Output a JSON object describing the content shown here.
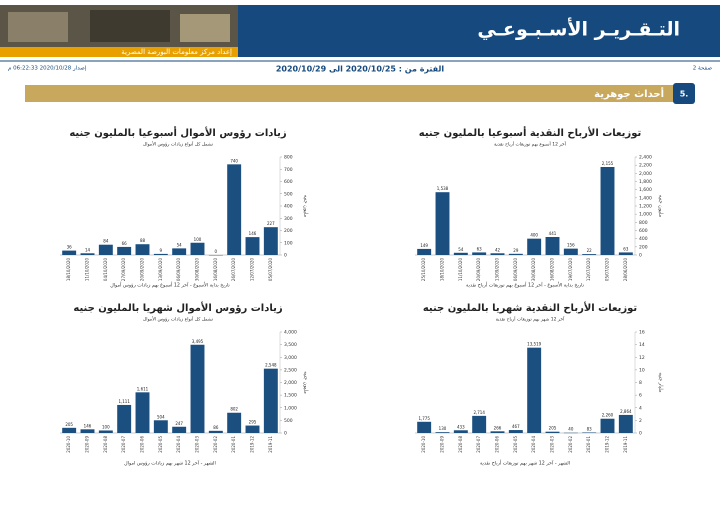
{
  "header": {
    "title": "التـقـريـر الأسـبـوعـي",
    "prepared_by": "إعداد مركز معلومات البورصة المصرية",
    "page": "صفحة 2",
    "period": "الفترة من : 2020/10/25 الى 2020/10/29",
    "issued": "إصدار 2020/10/28 06:22:33 م"
  },
  "section": {
    "number": "5.",
    "title": "أحداث جوهرية"
  },
  "chart_data": [
    {
      "type": "bar",
      "title": "توزيعات الأرباح النقدية أسبوعيا بالمليون جنيه",
      "subtitle": "آخر 12 أسبوع بهم توزيعات أرباح نقدية",
      "x_label": "تاريخ بداية الأسبوع - آخر 12 أسبوع بهم توزيعات أرباح نقدية",
      "y_label": "مليون جنيه",
      "color": "#1b4f80",
      "categories": [
        "25/10/2020",
        "18/10/2020",
        "11/10/2020",
        "20/09/2020",
        "13/09/2020",
        "06/09/2020",
        "30/08/2020",
        "16/08/2020",
        "19/07/2020",
        "12/07/2020",
        "05/07/2020",
        "28/06/2020"
      ],
      "values": [
        149,
        1538,
        54,
        63,
        42,
        29,
        400,
        441,
        156,
        22,
        2155,
        63
      ],
      "value_labels": [
        "149",
        "1,538",
        "54",
        "63",
        "42",
        "29",
        "400",
        "441",
        "156",
        "22",
        "2,155",
        "63"
      ],
      "ylim": [
        0,
        2400
      ],
      "yticks": [
        0,
        200,
        400,
        600,
        800,
        {
          "value": 1000,
          "label": "1,000"
        },
        {
          "value": 1200,
          "label": "1,200"
        },
        {
          "value": 1400,
          "label": "1,400"
        },
        {
          "value": 1600,
          "label": "1,600"
        },
        {
          "value": 1800,
          "label": "1,800"
        },
        {
          "value": 2000,
          "label": "2,000"
        },
        {
          "value": 2200,
          "label": "2,200"
        },
        {
          "value": 2400,
          "label": "2,400"
        }
      ]
    },
    {
      "type": "bar",
      "title": "زيادات رؤوس الأموال أسبوعيا بالمليون جنيه",
      "subtitle": "تشمل كل أنواع زيادات رؤوس الأموال",
      "x_label": "تاريخ بداية الأسبوع - آخر 12 أسبوع بهم زيادات رؤوس أموال",
      "y_label": "مليون جنيه",
      "color": "#1b4f80",
      "categories": [
        "18/10/2020",
        "11/10/2020",
        "04/10/2020",
        "27/09/2020",
        "20/09/2020",
        "13/09/2020",
        "06/09/2020",
        "30/08/2020",
        "16/08/2020",
        "26/07/2020",
        "12/07/2020",
        "05/07/2020"
      ],
      "values": [
        36,
        14,
        84,
        66,
        88,
        9,
        54,
        100,
        0,
        740,
        146,
        227
      ],
      "value_labels": [
        "36",
        "14",
        "84",
        "66",
        "88",
        "9",
        "54",
        "100",
        "0",
        "740",
        "146",
        "227"
      ],
      "ylim": [
        0,
        800
      ],
      "yticks": [
        0,
        100,
        200,
        300,
        400,
        500,
        600,
        700,
        800
      ]
    },
    {
      "type": "bar",
      "title": "توزيعات الأرباح النقدية شهريا بالمليون جنيه",
      "subtitle": "آخر 12 شهر بهم توزيعات أرباح نقدية",
      "x_label": "الشهر - آخر 12 شهر بهم توزيعات أرباح نقدية",
      "y_label": "مليار جنيه",
      "color": "#1b4f80",
      "categories": [
        "2020-10",
        "2020-09",
        "2020-08",
        "2020-07",
        "2020-06",
        "2020-05",
        "2020-04",
        "2020-03",
        "2020-02",
        "2020-01",
        "2019-12",
        "2019-11"
      ],
      "values": [
        1.775,
        0.13,
        0.433,
        2.714,
        0.266,
        0.467,
        13.519,
        0.205,
        0.04,
        0.083,
        2.26,
        2.864
      ],
      "value_labels": [
        "1,775",
        "130",
        "433",
        "2,714",
        "266",
        "467",
        "13,519",
        "205",
        "40",
        "83",
        "2,260",
        "2,864"
      ],
      "ylim": [
        0,
        16
      ],
      "yticks": [
        0,
        2,
        4,
        6,
        8,
        10,
        12,
        14,
        16
      ]
    },
    {
      "type": "bar",
      "title": "زيادات رؤوس الأموال شهريا بالمليون جنيه",
      "subtitle": "تشمل كل أنواع زيادات رؤوس الأموال",
      "x_label": "الشهر - آخر 12 شهر بهم زيادات رؤوس اموال",
      "y_label": "مليون جنيه",
      "color": "#1b4f80",
      "categories": [
        "2020-10",
        "2020-09",
        "2020-08",
        "2020-07",
        "2020-06",
        "2020-05",
        "2020-04",
        "2020-03",
        "2020-02",
        "2020-01",
        "2019-12",
        "2019-11"
      ],
      "values": [
        205,
        146,
        100,
        1111,
        1611,
        504,
        247,
        3495,
        86,
        802,
        295,
        2548
      ],
      "value_labels": [
        "205",
        "146",
        "100",
        "1,111",
        "1,611",
        "504",
        "247",
        "3,495",
        "86",
        "802",
        "295",
        "2,548"
      ],
      "ylim": [
        0,
        4000
      ],
      "yticks": [
        0,
        500,
        {
          "value": 1000,
          "label": "1,000"
        },
        {
          "value": 1500,
          "label": "1,500"
        },
        {
          "value": 2000,
          "label": "2,000"
        },
        {
          "value": 2500,
          "label": "2,500"
        },
        {
          "value": 3000,
          "label": "3,000"
        },
        {
          "value": 3500,
          "label": "3,500"
        },
        {
          "value": 4000,
          "label": "4,000"
        }
      ]
    }
  ]
}
